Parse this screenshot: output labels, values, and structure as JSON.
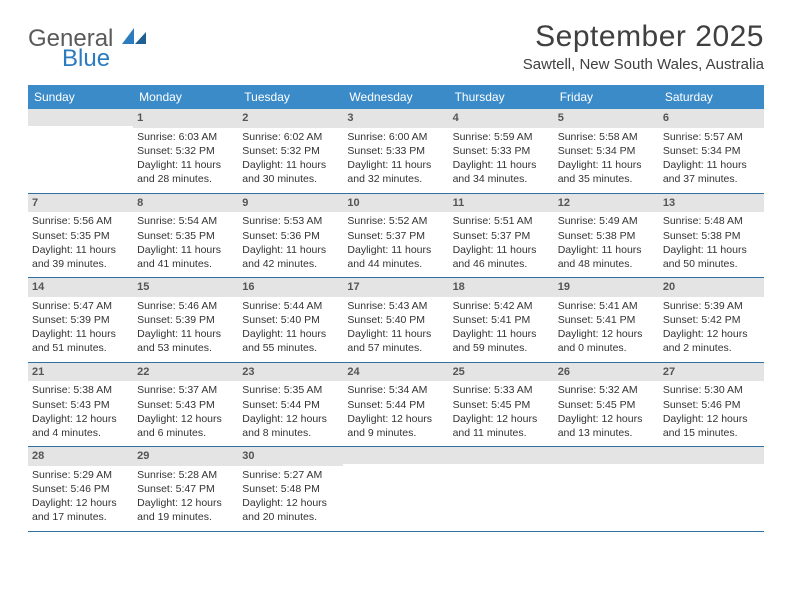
{
  "brand": {
    "part1": "General",
    "part2": "Blue"
  },
  "title": "September 2025",
  "location": "Sawtell, New South Wales, Australia",
  "header_bg": "#3b8bc9",
  "daybar_bg": "#e4e4e4",
  "row_border": "#2f6fa3",
  "day_headers": [
    "Sunday",
    "Monday",
    "Tuesday",
    "Wednesday",
    "Thursday",
    "Friday",
    "Saturday"
  ],
  "weeks": [
    [
      {
        "day": "",
        "sunrise": "",
        "sunset": "",
        "daylight": ""
      },
      {
        "day": "1",
        "sunrise": "Sunrise: 6:03 AM",
        "sunset": "Sunset: 5:32 PM",
        "daylight": "Daylight: 11 hours and 28 minutes."
      },
      {
        "day": "2",
        "sunrise": "Sunrise: 6:02 AM",
        "sunset": "Sunset: 5:32 PM",
        "daylight": "Daylight: 11 hours and 30 minutes."
      },
      {
        "day": "3",
        "sunrise": "Sunrise: 6:00 AM",
        "sunset": "Sunset: 5:33 PM",
        "daylight": "Daylight: 11 hours and 32 minutes."
      },
      {
        "day": "4",
        "sunrise": "Sunrise: 5:59 AM",
        "sunset": "Sunset: 5:33 PM",
        "daylight": "Daylight: 11 hours and 34 minutes."
      },
      {
        "day": "5",
        "sunrise": "Sunrise: 5:58 AM",
        "sunset": "Sunset: 5:34 PM",
        "daylight": "Daylight: 11 hours and 35 minutes."
      },
      {
        "day": "6",
        "sunrise": "Sunrise: 5:57 AM",
        "sunset": "Sunset: 5:34 PM",
        "daylight": "Daylight: 11 hours and 37 minutes."
      }
    ],
    [
      {
        "day": "7",
        "sunrise": "Sunrise: 5:56 AM",
        "sunset": "Sunset: 5:35 PM",
        "daylight": "Daylight: 11 hours and 39 minutes."
      },
      {
        "day": "8",
        "sunrise": "Sunrise: 5:54 AM",
        "sunset": "Sunset: 5:35 PM",
        "daylight": "Daylight: 11 hours and 41 minutes."
      },
      {
        "day": "9",
        "sunrise": "Sunrise: 5:53 AM",
        "sunset": "Sunset: 5:36 PM",
        "daylight": "Daylight: 11 hours and 42 minutes."
      },
      {
        "day": "10",
        "sunrise": "Sunrise: 5:52 AM",
        "sunset": "Sunset: 5:37 PM",
        "daylight": "Daylight: 11 hours and 44 minutes."
      },
      {
        "day": "11",
        "sunrise": "Sunrise: 5:51 AM",
        "sunset": "Sunset: 5:37 PM",
        "daylight": "Daylight: 11 hours and 46 minutes."
      },
      {
        "day": "12",
        "sunrise": "Sunrise: 5:49 AM",
        "sunset": "Sunset: 5:38 PM",
        "daylight": "Daylight: 11 hours and 48 minutes."
      },
      {
        "day": "13",
        "sunrise": "Sunrise: 5:48 AM",
        "sunset": "Sunset: 5:38 PM",
        "daylight": "Daylight: 11 hours and 50 minutes."
      }
    ],
    [
      {
        "day": "14",
        "sunrise": "Sunrise: 5:47 AM",
        "sunset": "Sunset: 5:39 PM",
        "daylight": "Daylight: 11 hours and 51 minutes."
      },
      {
        "day": "15",
        "sunrise": "Sunrise: 5:46 AM",
        "sunset": "Sunset: 5:39 PM",
        "daylight": "Daylight: 11 hours and 53 minutes."
      },
      {
        "day": "16",
        "sunrise": "Sunrise: 5:44 AM",
        "sunset": "Sunset: 5:40 PM",
        "daylight": "Daylight: 11 hours and 55 minutes."
      },
      {
        "day": "17",
        "sunrise": "Sunrise: 5:43 AM",
        "sunset": "Sunset: 5:40 PM",
        "daylight": "Daylight: 11 hours and 57 minutes."
      },
      {
        "day": "18",
        "sunrise": "Sunrise: 5:42 AM",
        "sunset": "Sunset: 5:41 PM",
        "daylight": "Daylight: 11 hours and 59 minutes."
      },
      {
        "day": "19",
        "sunrise": "Sunrise: 5:41 AM",
        "sunset": "Sunset: 5:41 PM",
        "daylight": "Daylight: 12 hours and 0 minutes."
      },
      {
        "day": "20",
        "sunrise": "Sunrise: 5:39 AM",
        "sunset": "Sunset: 5:42 PM",
        "daylight": "Daylight: 12 hours and 2 minutes."
      }
    ],
    [
      {
        "day": "21",
        "sunrise": "Sunrise: 5:38 AM",
        "sunset": "Sunset: 5:43 PM",
        "daylight": "Daylight: 12 hours and 4 minutes."
      },
      {
        "day": "22",
        "sunrise": "Sunrise: 5:37 AM",
        "sunset": "Sunset: 5:43 PM",
        "daylight": "Daylight: 12 hours and 6 minutes."
      },
      {
        "day": "23",
        "sunrise": "Sunrise: 5:35 AM",
        "sunset": "Sunset: 5:44 PM",
        "daylight": "Daylight: 12 hours and 8 minutes."
      },
      {
        "day": "24",
        "sunrise": "Sunrise: 5:34 AM",
        "sunset": "Sunset: 5:44 PM",
        "daylight": "Daylight: 12 hours and 9 minutes."
      },
      {
        "day": "25",
        "sunrise": "Sunrise: 5:33 AM",
        "sunset": "Sunset: 5:45 PM",
        "daylight": "Daylight: 12 hours and 11 minutes."
      },
      {
        "day": "26",
        "sunrise": "Sunrise: 5:32 AM",
        "sunset": "Sunset: 5:45 PM",
        "daylight": "Daylight: 12 hours and 13 minutes."
      },
      {
        "day": "27",
        "sunrise": "Sunrise: 5:30 AM",
        "sunset": "Sunset: 5:46 PM",
        "daylight": "Daylight: 12 hours and 15 minutes."
      }
    ],
    [
      {
        "day": "28",
        "sunrise": "Sunrise: 5:29 AM",
        "sunset": "Sunset: 5:46 PM",
        "daylight": "Daylight: 12 hours and 17 minutes."
      },
      {
        "day": "29",
        "sunrise": "Sunrise: 5:28 AM",
        "sunset": "Sunset: 5:47 PM",
        "daylight": "Daylight: 12 hours and 19 minutes."
      },
      {
        "day": "30",
        "sunrise": "Sunrise: 5:27 AM",
        "sunset": "Sunset: 5:48 PM",
        "daylight": "Daylight: 12 hours and 20 minutes."
      },
      {
        "day": "",
        "sunrise": "",
        "sunset": "",
        "daylight": ""
      },
      {
        "day": "",
        "sunrise": "",
        "sunset": "",
        "daylight": ""
      },
      {
        "day": "",
        "sunrise": "",
        "sunset": "",
        "daylight": ""
      },
      {
        "day": "",
        "sunrise": "",
        "sunset": "",
        "daylight": ""
      }
    ]
  ]
}
